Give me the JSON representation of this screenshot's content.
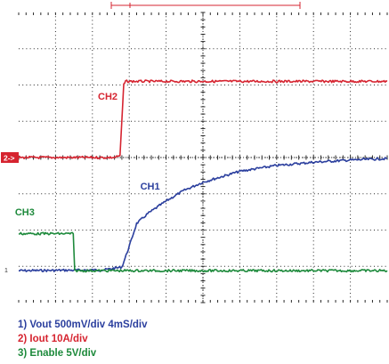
{
  "chart_data": {
    "type": "line",
    "title": "",
    "xlabel": "",
    "ylabel": "",
    "x_divisions": 10,
    "y_divisions": 8,
    "grid": true,
    "grid_style": "dotted",
    "series": [
      {
        "name": "CH1",
        "color": "#2b3f9e",
        "x_div": [
          0,
          2.3,
          2.8,
          3.0,
          3.2,
          3.5,
          4.0,
          4.5,
          5.0,
          6.0,
          7.0,
          8.0,
          9.0,
          10.0
        ],
        "y_div": [
          -3.12,
          -3.1,
          -3.02,
          -2.45,
          -1.82,
          -1.55,
          -1.2,
          -0.9,
          -0.68,
          -0.38,
          -0.22,
          -0.13,
          -0.07,
          -0.03
        ]
      },
      {
        "name": "CH2",
        "color": "#d62430",
        "x_div": [
          0,
          2.6,
          2.75,
          2.85,
          2.9,
          3.0,
          10.0
        ],
        "y_div": [
          0.0,
          0.0,
          0.05,
          2.0,
          2.1,
          2.1,
          2.1
        ]
      },
      {
        "name": "CH3",
        "color": "#1e8a3c",
        "x_div": [
          0,
          1.48,
          1.52,
          10.0
        ],
        "y_div": [
          -2.1,
          -2.1,
          -3.12,
          -3.12
        ]
      }
    ],
    "ch2_offset_marker": "2->",
    "ch1_ground_marker": "1",
    "legend": [
      "1) Vout 500mV/div 4mS/div",
      "2) Iout 10A/div",
      "3) Enable 5V/div"
    ]
  },
  "theme": {
    "grid_color": "#2a2a2a",
    "ch1_color": "#2b3f9e",
    "ch2_color": "#d62430",
    "ch3_color": "#1e8a3c"
  }
}
